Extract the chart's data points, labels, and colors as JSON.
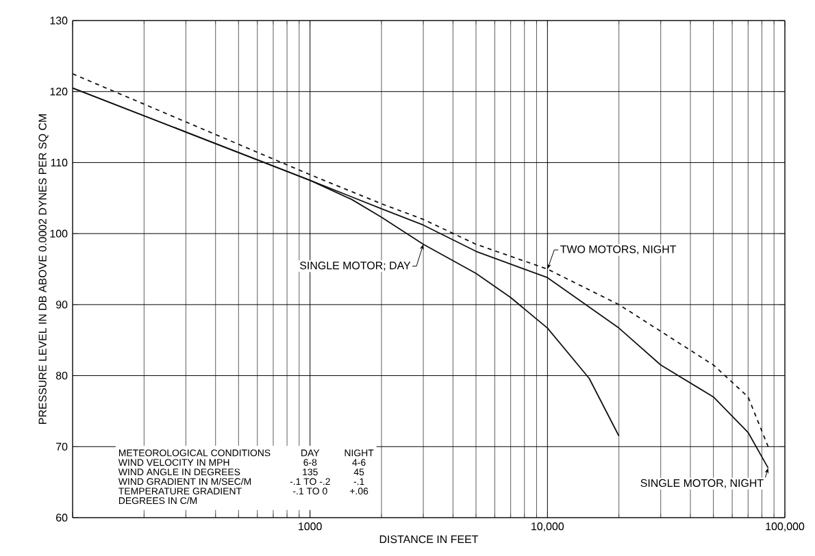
{
  "chart_data": {
    "type": "line",
    "xlabel": "DISTANCE IN FEET",
    "ylabel": "PRESSURE LEVEL IN DB ABOVE 0.0002 DYNES PER SQ CM",
    "log": "x",
    "xlim": [
      100,
      100000
    ],
    "xticks": [
      {
        "value": 100,
        "label": null
      },
      1000,
      {
        "value": 10000,
        "label": "10,000"
      },
      {
        "value": 100000,
        "label": "100,000"
      }
    ],
    "ylim": [
      60,
      130
    ],
    "yticks": [
      60,
      70,
      80,
      90,
      100,
      110,
      120,
      130
    ],
    "grid": true,
    "legend": false,
    "marker": "none",
    "series": [
      {
        "name": "SINGLE MOTOR; DAY",
        "color": "#111111",
        "line_style": "solid",
        "x": [
          100,
          300,
          1000,
          1500,
          2000,
          3000,
          5000,
          7000,
          10000,
          15000,
          20000
        ],
        "values": [
          120.5,
          114.3,
          107.5,
          104.8,
          102.3,
          98.5,
          94.4,
          91,
          86.7,
          79.6,
          71.5
        ]
      },
      {
        "name": "SINGLE MOTOR, NIGHT",
        "color": "#111111",
        "line_style": "solid",
        "x": [
          100,
          300,
          1000,
          2000,
          3000,
          5000,
          10000,
          20000,
          30000,
          50000,
          70000,
          85000
        ],
        "values": [
          120.5,
          114.3,
          107.5,
          103.5,
          101.2,
          97.5,
          93.8,
          86.7,
          81.5,
          77,
          72,
          67
        ]
      },
      {
        "name": "TWO MOTORS, NIGHT",
        "color": "#111111",
        "line_style": "dashed",
        "x": [
          100,
          1000,
          2000,
          3000,
          5000,
          10000,
          20000,
          50000,
          70000,
          85000
        ],
        "values": [
          122.5,
          108.3,
          104.2,
          102,
          98.5,
          95,
          90,
          81.5,
          77,
          70
        ]
      }
    ],
    "annotations": [
      "METEOROLOGICAL CONDITIONS",
      "DAY",
      "NIGHT",
      "WIND VELOCITY IN MPH",
      "6-8",
      "4-6",
      "WIND ANGLE IN DEGREES",
      "135",
      "45",
      "WIND GRADIENT IN M/SEC/M",
      "-.1 TO -.2",
      "-.1",
      "TEMPERATURE GRADIENT",
      "-.1 TO 0",
      "+.06",
      "DEGREES IN C/M"
    ]
  }
}
